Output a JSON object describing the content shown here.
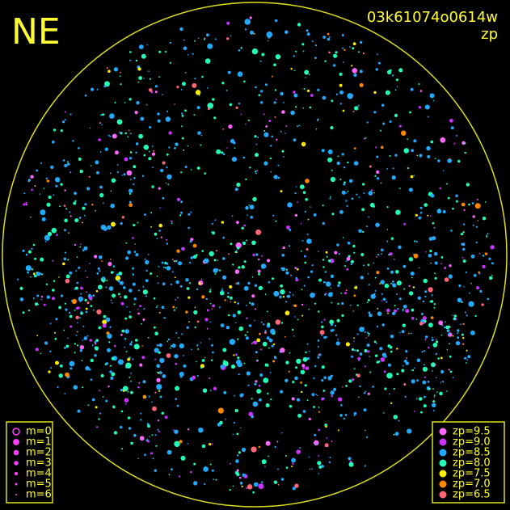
{
  "header": {
    "label": "NE",
    "id": "03k61074o0614w",
    "mode": "zp"
  },
  "magnitude_legend": [
    "m=0",
    "m=1",
    "m=2",
    "m=3",
    "m=4",
    "m=5",
    "m=6"
  ],
  "magnitude_color": "#ff40ff",
  "zp_legend": [
    {
      "label": "zp=9.5",
      "color": "#ff66ff"
    },
    {
      "label": "zp=9.0",
      "color": "#cc33ff"
    },
    {
      "label": "zp=8.5",
      "color": "#22aaff"
    },
    {
      "label": "zp=8.0",
      "color": "#22ffbb"
    },
    {
      "label": "zp=7.5",
      "color": "#ffee00"
    },
    {
      "label": "zp=7.0",
      "color": "#ff8800"
    },
    {
      "label": "zp=6.5",
      "color": "#ff6677"
    }
  ]
}
